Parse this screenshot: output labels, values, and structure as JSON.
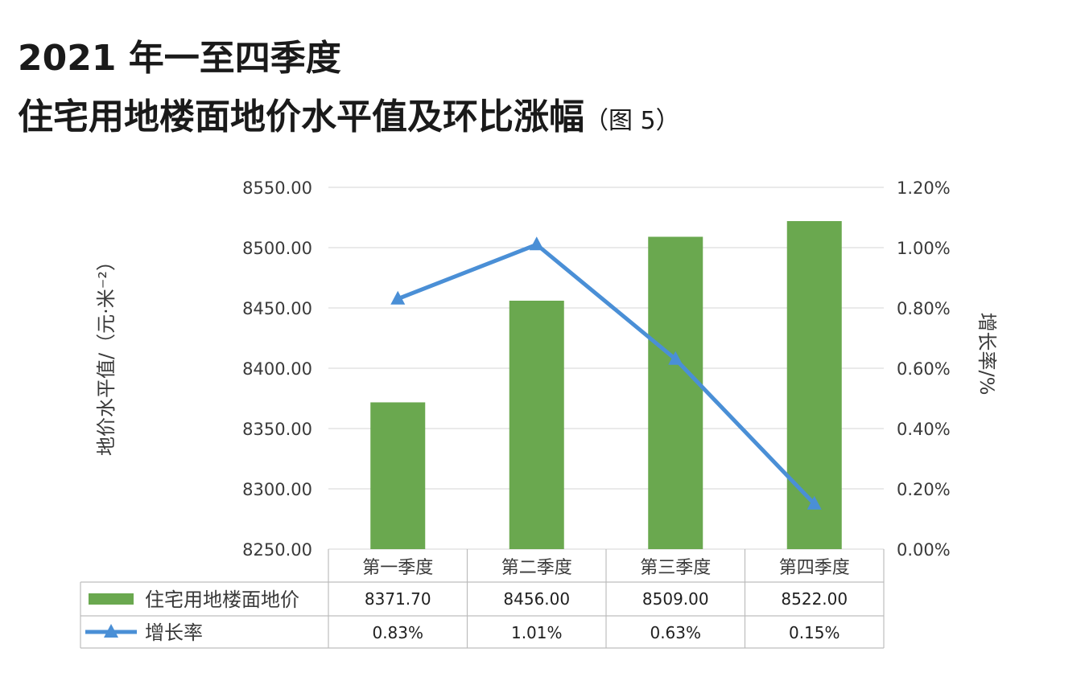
{
  "title_line1": "2021 年一至四季度",
  "title_line2_main": "住宅用地楼面地价水平值及环比涨幅",
  "title_line2_suffix": "（图 5）",
  "chart_data": {
    "type": "bar",
    "title": "2021 年一至四季度住宅用地楼面地价水平值及环比涨幅（图 5）",
    "categories": [
      "第一季度",
      "第二季度",
      "第三季度",
      "第四季度"
    ],
    "ylabel": "地价水平值/（元·米⁻²）",
    "y2label": "增长率/%",
    "ylim": [
      8250,
      8550
    ],
    "y2lim": [
      0,
      1.2
    ],
    "y_ticks": [
      "8550.00",
      "8500.00",
      "8450.00",
      "8400.00",
      "8350.00",
      "8300.00",
      "8250.00"
    ],
    "y2_ticks": [
      "1.20%",
      "1.00%",
      "0.80%",
      "0.60%",
      "0.40%",
      "0.20%",
      "0.00%"
    ],
    "grid": true,
    "legend": "data-table",
    "series": [
      {
        "name": "住宅用地楼面地价",
        "type": "bar",
        "axis": "left",
        "color": "#6aa84f",
        "values": [
          8371.7,
          8456.0,
          8509.0,
          8522.0
        ],
        "labels": [
          "8371.70",
          "8456.00",
          "8509.00",
          "8522.00"
        ]
      },
      {
        "name": "增长率",
        "type": "line",
        "axis": "right",
        "color": "#4a8fd6",
        "marker": "triangle",
        "values": [
          0.83,
          1.01,
          0.63,
          0.15
        ],
        "labels": [
          "0.83%",
          "1.01%",
          "0.63%",
          "0.15%"
        ]
      }
    ]
  }
}
